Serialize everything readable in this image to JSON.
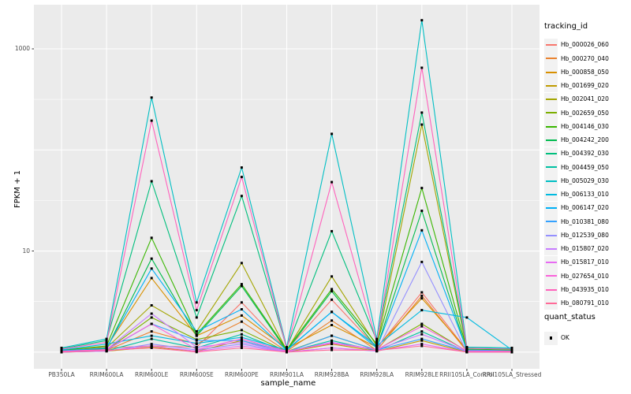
{
  "colors": {
    "figure_bg": "#ffffff",
    "panel_bg": "#ebebeb",
    "grid": "#ffffff",
    "tick_text": "#4d4d4d",
    "title_text": "#000000",
    "legend_key_bg": "#f2f2f2",
    "point": "#000000",
    "tick_mark": "#333333"
  },
  "axes": {
    "x_title": "sample_name",
    "y_title": "FPKM + 1",
    "y_tick_labels": [
      "1000",
      "10"
    ],
    "y_tick_values": [
      1000,
      10
    ]
  },
  "legend": {
    "tracking_title": "tracking_id",
    "quant_title": "quant_status",
    "quant_ok_label": "OK"
  },
  "chart_data": {
    "type": "line",
    "title": "",
    "xlabel": "sample_name",
    "ylabel": "FPKM + 1",
    "y_scale": "log10",
    "ylim": [
      1,
      2600
    ],
    "grid": true,
    "legend_position": "right",
    "y_labeled_breaks": [
      10,
      1000
    ],
    "y_major_gridlines": [
      1,
      10,
      100,
      1000
    ],
    "y_minor_gridlines": [
      3.162,
      31.62,
      316.23
    ],
    "point_marker": "filled-square",
    "quant_status": "OK",
    "categories": [
      "PB350LA",
      "RRIM600LA",
      "RRIM600LE",
      "RRIM600SE",
      "RRIM600PE",
      "RRIM901LA",
      "RRIM928BA",
      "RRIM928LA",
      "RRIM928LE",
      "RRII105LA_Control",
      "RRII105LA_Stressed"
    ],
    "series": [
      {
        "name": "Hb_000026_060",
        "color": "#F8766D",
        "values": [
          1.02,
          1.1,
          1.15,
          1.12,
          3.1,
          1.05,
          3.3,
          1.1,
          3.9,
          1.04,
          1.02
        ]
      },
      {
        "name": "Hb_000270_040",
        "color": "#EA8331",
        "values": [
          1.0,
          1.04,
          1.6,
          1.2,
          2.0,
          1.02,
          2.05,
          1.04,
          3.6,
          1.02,
          1.0
        ]
      },
      {
        "name": "Hb_000858_050",
        "color": "#D89000",
        "values": [
          1.05,
          1.12,
          5.4,
          1.45,
          2.3,
          1.08,
          1.85,
          1.12,
          3.4,
          1.06,
          1.04
        ]
      },
      {
        "name": "Hb_001699_020",
        "color": "#C09B00",
        "values": [
          1.0,
          1.02,
          1.12,
          1.02,
          1.3,
          1.0,
          1.2,
          1.02,
          1.3,
          1.0,
          1.0
        ]
      },
      {
        "name": "Hb_002041_020",
        "color": "#A3A500",
        "values": [
          1.03,
          1.1,
          2.9,
          1.6,
          7.6,
          1.04,
          5.6,
          1.15,
          178,
          1.05,
          1.03
        ]
      },
      {
        "name": "Hb_002659_050",
        "color": "#7CAE00",
        "values": [
          1.01,
          1.05,
          2.2,
          1.33,
          1.65,
          1.01,
          1.45,
          1.05,
          1.9,
          1.02,
          1.01
        ]
      },
      {
        "name": "Hb_004146_030",
        "color": "#39B600",
        "values": [
          1.04,
          1.15,
          13.5,
          1.5,
          4.7,
          1.06,
          4.2,
          1.2,
          42,
          1.07,
          1.05
        ]
      },
      {
        "name": "Hb_004242_200",
        "color": "#00BB4E",
        "values": [
          1.02,
          1.08,
          8.4,
          1.45,
          4.5,
          1.03,
          4.0,
          1.1,
          25,
          1.03,
          1.02
        ]
      },
      {
        "name": "Hb_004392_030",
        "color": "#00BF7D",
        "values": [
          1.08,
          1.3,
          49,
          2.2,
          35,
          1.1,
          15.7,
          1.3,
          234,
          1.1,
          1.08
        ]
      },
      {
        "name": "Hb_004459_050",
        "color": "#00C1A3",
        "values": [
          1.0,
          1.03,
          1.35,
          1.1,
          1.5,
          1.0,
          1.3,
          1.03,
          1.6,
          1.01,
          1.0
        ]
      },
      {
        "name": "Hb_005029_030",
        "color": "#00BFC4",
        "values": [
          1.1,
          1.35,
          330,
          3.1,
          67,
          1.12,
          144,
          1.35,
          1920,
          1.12,
          1.1
        ]
      },
      {
        "name": "Hb_006133_010",
        "color": "#00BAE0",
        "values": [
          1.05,
          1.2,
          1.45,
          1.22,
          1.4,
          1.05,
          2.5,
          1.15,
          2.6,
          2.2,
          1.05
        ]
      },
      {
        "name": "Hb_006147_020",
        "color": "#00B0F6",
        "values": [
          1.03,
          1.1,
          6.7,
          1.6,
          2.65,
          1.04,
          2.5,
          1.1,
          16,
          1.05,
          1.03
        ]
      },
      {
        "name": "Hb_010381_080",
        "color": "#35A2FF",
        "values": [
          1.0,
          1.05,
          1.9,
          1.3,
          1.3,
          1.0,
          1.45,
          1.05,
          1.35,
          1.02,
          1.0
        ]
      },
      {
        "name": "Hb_012539_080",
        "color": "#9590FF",
        "values": [
          1.0,
          1.02,
          1.2,
          1.05,
          1.2,
          1.0,
          1.1,
          1.02,
          7.8,
          1.0,
          1.0
        ]
      },
      {
        "name": "Hb_015807_020",
        "color": "#C77CFF",
        "values": [
          1.01,
          1.06,
          2.4,
          1.12,
          1.25,
          1.01,
          1.25,
          1.06,
          1.5,
          1.02,
          1.01
        ]
      },
      {
        "name": "Hb_015817_010",
        "color": "#E76BF3",
        "values": [
          1.0,
          1.03,
          1.15,
          1.02,
          1.15,
          1.0,
          1.1,
          1.03,
          1.2,
          1.0,
          1.0
        ]
      },
      {
        "name": "Hb_027654_010",
        "color": "#FA62DB",
        "values": [
          1.02,
          1.06,
          1.9,
          1.06,
          1.35,
          1.02,
          1.22,
          1.06,
          1.8,
          1.03,
          1.02
        ]
      },
      {
        "name": "Hb_043935_010",
        "color": "#FF62BC",
        "values": [
          1.07,
          1.25,
          195,
          2.6,
          54,
          1.08,
          48,
          1.25,
          650,
          1.09,
          1.07
        ]
      },
      {
        "name": "Hb_080791_010",
        "color": "#FF6A98",
        "values": [
          1.0,
          1.04,
          1.1,
          1.0,
          1.1,
          1.0,
          1.05,
          1.04,
          1.15,
          1.0,
          1.0
        ]
      }
    ]
  }
}
